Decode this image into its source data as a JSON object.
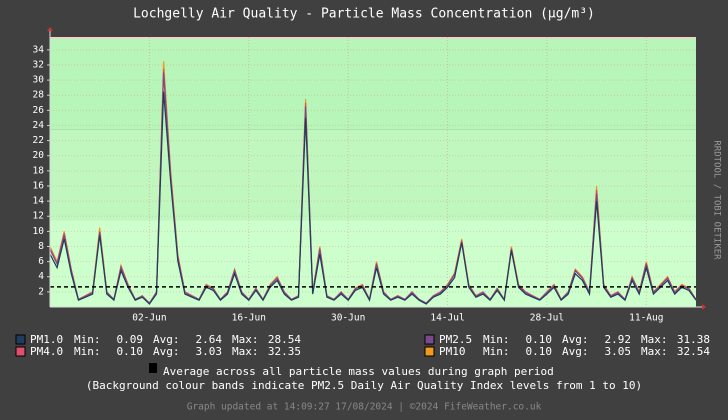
{
  "chart_data": {
    "type": "line",
    "title": "Lochgelly Air Quality - Particle Mass Concentration (μg/m³)",
    "side_text": "RRDTOOL / TOBI OETIKER",
    "categories": [
      null,
      null,
      null,
      null,
      null,
      null,
      null,
      null,
      null,
      null,
      null,
      null,
      null,
      null,
      "02-Jun",
      null,
      null,
      null,
      null,
      null,
      null,
      null,
      null,
      null,
      null,
      null,
      null,
      null,
      "16-Jun",
      null,
      null,
      null,
      null,
      null,
      null,
      null,
      null,
      null,
      null,
      null,
      null,
      null,
      "30-Jun",
      null,
      null,
      null,
      null,
      null,
      null,
      null,
      null,
      null,
      null,
      null,
      null,
      null,
      "14-Jul",
      null,
      null,
      null,
      null,
      null,
      null,
      null,
      null,
      null,
      null,
      null,
      null,
      null,
      "28-Jul",
      null,
      null,
      null,
      null,
      null,
      null,
      null,
      null,
      null,
      null,
      null,
      null,
      null,
      "11-Aug",
      null,
      null,
      null,
      null,
      null,
      null,
      null
    ],
    "ylim": [
      0,
      35.7
    ],
    "yticks": [
      2,
      4,
      6,
      8,
      10,
      12,
      14,
      16,
      18,
      20,
      22,
      24,
      26,
      28,
      30,
      32,
      34
    ],
    "grid": true,
    "bands": [
      {
        "from": 0,
        "to": 11.5,
        "color": "#ccffcc"
      },
      {
        "from": 11.5,
        "to": 23.5,
        "color": "#bff7bf"
      },
      {
        "from": 23.5,
        "to": 35.5,
        "color": "#b8f5b8"
      },
      {
        "from": 35.5,
        "to": 35.7,
        "color": "#ffcccc"
      }
    ],
    "average_line": 2.66,
    "stat_labels": [
      "Min:",
      "Avg:",
      "Max:"
    ],
    "series": [
      {
        "name": "PM1.0",
        "color": "#1f3d5c",
        "stats": [
          "0.09",
          "2.64",
          "28.54"
        ],
        "values": [
          7,
          5.2,
          9,
          4.4,
          0.9,
          1.3,
          1.7,
          9.5,
          1.7,
          0.9,
          4.8,
          2.6,
          0.9,
          1.3,
          0.4,
          1.7,
          28.5,
          16.5,
          6.1,
          1.7,
          1.3,
          0.9,
          2.6,
          2.2,
          0.9,
          1.7,
          4.4,
          1.7,
          0.9,
          2.2,
          0.9,
          2.6,
          3.5,
          1.7,
          0.9,
          1.3,
          25,
          1.7,
          7,
          1.3,
          0.9,
          1.7,
          0.9,
          2.2,
          2.6,
          0.9,
          5.2,
          1.7,
          0.9,
          1.3,
          0.9,
          1.7,
          0.9,
          0.4,
          1.3,
          1.7,
          2.6,
          3.9,
          8.5,
          2.6,
          1.3,
          1.7,
          0.9,
          2.2,
          0.9,
          7.5,
          2.6,
          1.7,
          1.3,
          0.9,
          1.7,
          2.6,
          0.9,
          1.7,
          4.4,
          3.5,
          1.7,
          14,
          2.6,
          1.3,
          1.7,
          0.9,
          3.5,
          1.7,
          5.2,
          1.7,
          2.6,
          3.5,
          1.7,
          2.6,
          2.2,
          0.9
        ]
      },
      {
        "name": "PM4.0",
        "color": "#e0506e",
        "stats": [
          "0.10",
          "3.03",
          "32.35"
        ],
        "values": [
          7.8,
          5.8,
          9.8,
          4.9,
          1,
          1.5,
          2,
          10,
          2,
          1,
          5.4,
          2.9,
          1,
          1.5,
          0.5,
          2,
          31.5,
          17.5,
          6.8,
          2,
          1.5,
          1,
          2.9,
          2.4,
          1,
          2,
          4.9,
          2,
          1,
          2.4,
          1,
          2.9,
          3.9,
          2,
          1,
          1.5,
          27,
          2,
          7.8,
          1.5,
          1,
          2,
          1,
          2.4,
          2.9,
          1,
          5.8,
          2,
          1,
          1.5,
          1,
          2,
          1,
          0.5,
          1.5,
          2,
          2.9,
          4.4,
          8.8,
          2.9,
          1.5,
          2,
          1,
          2.4,
          1,
          7.8,
          2.9,
          2,
          1.5,
          1,
          2,
          2.9,
          1,
          2,
          4.9,
          3.9,
          2,
          15.5,
          2.9,
          1.5,
          2,
          1,
          3.9,
          2,
          5.8,
          2,
          2.9,
          3.9,
          2,
          2.9,
          2.4,
          1
        ]
      },
      {
        "name": "PM2.5",
        "color": "#7a4b8c",
        "stats": [
          "0.10",
          "2.92",
          "31.38"
        ],
        "values": [
          7.6,
          5.7,
          9.5,
          4.8,
          1,
          1.4,
          1.9,
          9.9,
          1.9,
          1,
          5.2,
          2.8,
          1,
          1.4,
          0.5,
          1.9,
          31,
          17,
          6.6,
          1.9,
          1.4,
          1,
          2.8,
          2.4,
          1,
          1.9,
          4.8,
          1.9,
          1,
          2.4,
          1,
          2.8,
          3.8,
          1.9,
          1,
          1.4,
          26.5,
          1.9,
          7.6,
          1.4,
          1,
          1.9,
          1,
          2.4,
          2.8,
          1,
          5.7,
          1.9,
          1,
          1.4,
          1,
          1.9,
          1,
          0.5,
          1.4,
          1.9,
          2.8,
          4.3,
          8.6,
          2.8,
          1.4,
          1.9,
          1,
          2.4,
          1,
          7.6,
          2.8,
          1.9,
          1.4,
          1,
          1.9,
          2.8,
          1,
          1.9,
          4.8,
          3.8,
          1.9,
          15,
          2.8,
          1.4,
          1.9,
          1,
          3.8,
          1.9,
          5.7,
          1.9,
          2.8,
          3.8,
          1.9,
          2.8,
          2.4,
          1
        ]
      },
      {
        "name": "PM10",
        "color": "#f09a1e",
        "stats": [
          "0.10",
          "3.05",
          "32.54"
        ],
        "values": [
          8,
          6,
          10,
          5,
          1,
          1.5,
          2,
          10.5,
          2,
          1,
          5.5,
          3,
          1,
          1.5,
          0.5,
          2,
          32.5,
          18,
          7,
          2,
          1.5,
          1,
          3,
          2.5,
          1,
          2,
          5,
          2,
          1,
          2.5,
          1,
          3,
          4,
          2,
          1,
          1.5,
          27.5,
          2,
          8,
          1.5,
          1,
          2,
          1,
          2.5,
          3,
          1,
          6,
          2,
          1,
          1.5,
          1,
          2,
          1,
          0.5,
          1.5,
          2,
          3,
          4.5,
          9,
          3,
          1.5,
          2,
          1,
          2.5,
          1,
          8,
          3,
          2,
          1.5,
          1,
          2,
          3,
          1,
          2,
          5,
          4,
          2,
          16,
          3,
          1.5,
          2,
          1,
          4,
          2,
          6,
          2,
          3,
          4,
          2,
          3,
          2.5,
          1
        ]
      }
    ],
    "average_text": "Average across all particle mass values during graph period",
    "band_note": "(Background colour bands indicate PM2.5 Daily Air Quality Index levels from 1 to 10)",
    "footer": "Graph updated at 14:09:27 17/08/2024 | ©2024 FifeWeather.co.uk"
  }
}
